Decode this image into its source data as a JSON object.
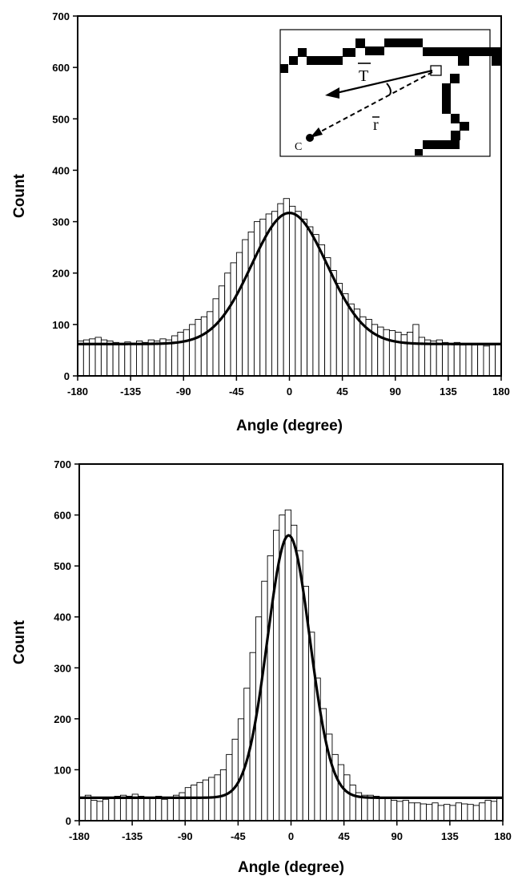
{
  "chart_data": [
    {
      "type": "bar",
      "subtype": "histogram-with-fit",
      "xlabel": "Angle (degree)",
      "ylabel": "Count",
      "xlim": [
        -180,
        180
      ],
      "ylim": [
        0,
        700
      ],
      "xticks": [
        -180,
        -135,
        -90,
        -45,
        0,
        45,
        90,
        135,
        180
      ],
      "yticks": [
        0,
        100,
        200,
        300,
        400,
        500,
        600,
        700
      ],
      "bin_width": 5,
      "bin_centers": [
        -177.5,
        -172.5,
        -167.5,
        -162.5,
        -157.5,
        -152.5,
        -147.5,
        -142.5,
        -137.5,
        -132.5,
        -127.5,
        -122.5,
        -117.5,
        -112.5,
        -107.5,
        -102.5,
        -97.5,
        -92.5,
        -87.5,
        -82.5,
        -77.5,
        -72.5,
        -67.5,
        -62.5,
        -57.5,
        -52.5,
        -47.5,
        -42.5,
        -37.5,
        -32.5,
        -27.5,
        -22.5,
        -17.5,
        -12.5,
        -7.5,
        -2.5,
        2.5,
        7.5,
        12.5,
        17.5,
        22.5,
        27.5,
        32.5,
        37.5,
        42.5,
        47.5,
        52.5,
        57.5,
        62.5,
        67.5,
        72.5,
        77.5,
        82.5,
        87.5,
        92.5,
        97.5,
        102.5,
        107.5,
        112.5,
        117.5,
        122.5,
        127.5,
        132.5,
        137.5,
        142.5,
        147.5,
        152.5,
        157.5,
        162.5,
        167.5,
        172.5,
        177.5
      ],
      "values": [
        68,
        70,
        72,
        75,
        70,
        68,
        65,
        62,
        66,
        64,
        68,
        65,
        70,
        68,
        72,
        70,
        78,
        85,
        90,
        100,
        110,
        115,
        125,
        150,
        175,
        200,
        220,
        240,
        265,
        280,
        300,
        305,
        315,
        320,
        335,
        345,
        330,
        320,
        305,
        290,
        275,
        255,
        230,
        205,
        180,
        160,
        140,
        130,
        115,
        110,
        100,
        95,
        90,
        88,
        85,
        80,
        85,
        100,
        75,
        70,
        68,
        70,
        65,
        62,
        65,
        60,
        62,
        60,
        62,
        58,
        60,
        62
      ],
      "fit": {
        "type": "gaussian",
        "baseline": 62,
        "amplitude": 255,
        "center": 0,
        "sigma": 32
      },
      "inset": {
        "labels": {
          "t": "T",
          "r": "r",
          "c": "C"
        }
      }
    },
    {
      "type": "bar",
      "subtype": "histogram-with-fit",
      "xlabel": "Angle (degree)",
      "ylabel": "Count",
      "xlim": [
        -180,
        180
      ],
      "ylim": [
        0,
        700
      ],
      "xticks": [
        -180,
        -135,
        -90,
        -45,
        0,
        45,
        90,
        135,
        180
      ],
      "yticks": [
        0,
        100,
        200,
        300,
        400,
        500,
        600,
        700
      ],
      "bin_width": 5,
      "bin_centers": [
        -177.5,
        -172.5,
        -167.5,
        -162.5,
        -157.5,
        -152.5,
        -147.5,
        -142.5,
        -137.5,
        -132.5,
        -127.5,
        -122.5,
        -117.5,
        -112.5,
        -107.5,
        -102.5,
        -97.5,
        -92.5,
        -87.5,
        -82.5,
        -77.5,
        -72.5,
        -67.5,
        -62.5,
        -57.5,
        -52.5,
        -47.5,
        -42.5,
        -37.5,
        -32.5,
        -27.5,
        -22.5,
        -17.5,
        -12.5,
        -7.5,
        -2.5,
        2.5,
        7.5,
        12.5,
        17.5,
        22.5,
        27.5,
        32.5,
        37.5,
        42.5,
        47.5,
        52.5,
        57.5,
        62.5,
        67.5,
        72.5,
        77.5,
        82.5,
        87.5,
        92.5,
        97.5,
        102.5,
        107.5,
        112.5,
        117.5,
        122.5,
        127.5,
        132.5,
        137.5,
        142.5,
        147.5,
        152.5,
        157.5,
        162.5,
        167.5,
        172.5,
        177.5
      ],
      "values": [
        45,
        50,
        40,
        38,
        42,
        45,
        48,
        50,
        48,
        52,
        48,
        45,
        45,
        48,
        42,
        45,
        50,
        55,
        65,
        70,
        75,
        80,
        85,
        90,
        100,
        130,
        160,
        200,
        260,
        330,
        400,
        470,
        520,
        570,
        600,
        610,
        580,
        530,
        460,
        370,
        280,
        220,
        170,
        130,
        110,
        90,
        70,
        55,
        50,
        50,
        48,
        45,
        45,
        40,
        38,
        40,
        35,
        35,
        33,
        32,
        35,
        30,
        32,
        30,
        35,
        33,
        32,
        30,
        35,
        40,
        38,
        45
      ],
      "fit": {
        "type": "gaussian",
        "baseline": 45,
        "amplitude": 515,
        "center": -2,
        "sigma": 18
      }
    }
  ]
}
